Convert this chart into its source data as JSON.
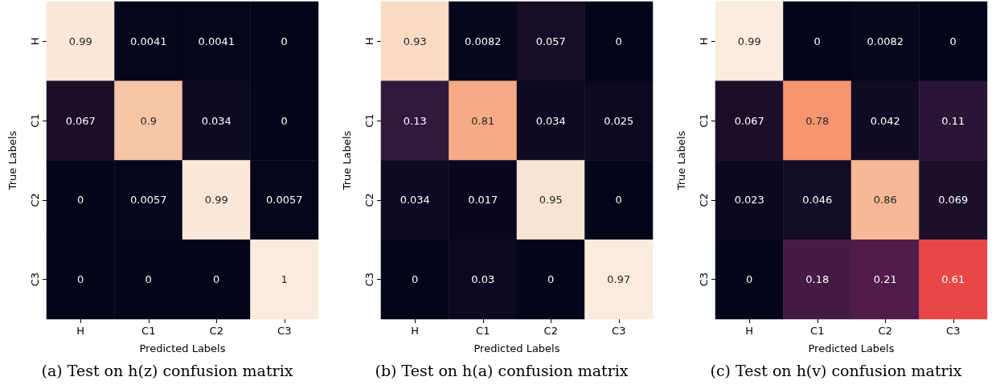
{
  "chart_data": [
    {
      "type": "heatmap",
      "data_labels": true,
      "title": "(a) Test on h(z) confusion matrix",
      "xlabel": "Predicted Labels",
      "ylabel": "True Labels",
      "categories": [
        "H",
        "C1",
        "C2",
        "C3"
      ],
      "y_categories": [
        "H",
        "C1",
        "C2",
        "C3"
      ],
      "cells": [
        [
          0.99,
          0.0041,
          0.0041,
          0
        ],
        [
          0.067,
          0.9,
          0.034,
          0
        ],
        [
          0,
          0.0057,
          0.99,
          0.0057
        ],
        [
          0,
          0,
          0,
          1
        ]
      ]
    },
    {
      "type": "heatmap",
      "data_labels": true,
      "title": "(b) Test on h(a) confusion matrix",
      "xlabel": "Predicted Labels",
      "ylabel": "True Labels",
      "categories": [
        "H",
        "C1",
        "C2",
        "C3"
      ],
      "y_categories": [
        "H",
        "C1",
        "C2",
        "C3"
      ],
      "cells": [
        [
          0.93,
          0.0082,
          0.057,
          0
        ],
        [
          0.13,
          0.81,
          0.034,
          0.025
        ],
        [
          0.034,
          0.017,
          0.95,
          0
        ],
        [
          0,
          0.03,
          0,
          0.97
        ]
      ]
    },
    {
      "type": "heatmap",
      "data_labels": true,
      "title": "(c) Test on h(v) confusion matrix",
      "xlabel": "Predicted Labels",
      "ylabel": "True Labels",
      "categories": [
        "H",
        "C1",
        "C2",
        "C3"
      ],
      "y_categories": [
        "H",
        "C1",
        "C2",
        "C3"
      ],
      "cells": [
        [
          0.99,
          0,
          0.0082,
          0
        ],
        [
          0.067,
          0.78,
          0.042,
          0.11
        ],
        [
          0.023,
          0.046,
          0.86,
          0.069
        ],
        [
          0,
          0.18,
          0.21,
          0.61
        ]
      ]
    }
  ]
}
